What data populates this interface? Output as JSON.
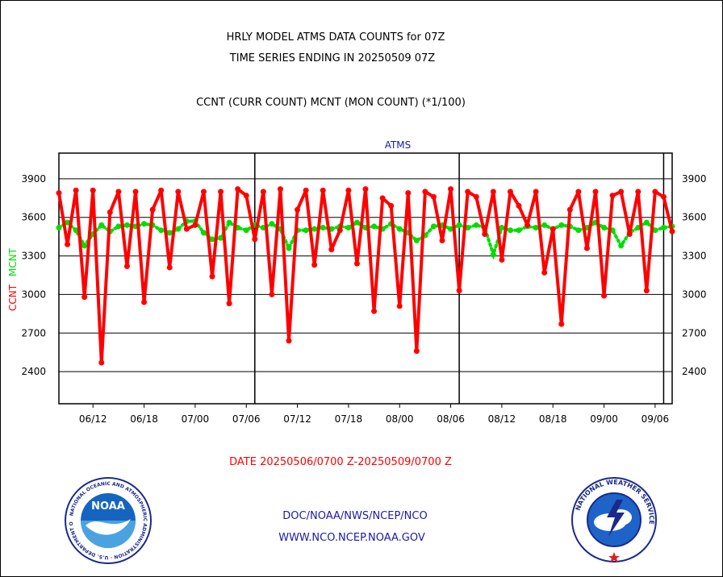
{
  "header": {
    "line1": "HRLY MODEL ATMS DATA COUNTS for 07Z",
    "line2": "TIME SERIES ENDING IN 20250509 07Z",
    "line3": "CCNT (CURR COUNT) MCNT (MON COUNT) (*1/100)"
  },
  "footer": {
    "date_range": "DATE 20250506/0700 Z-20250509/0700 Z",
    "link1": "DOC/NOAA/NWS/NCEP/NCO",
    "link2": "WWW.NCO.NCEP.NOAA.GOV"
  },
  "logos": {
    "noaa_text": "NOAA",
    "noaa_ring_text": "NATIONAL OCEANIC AND ATMOSPHERIC ADMINISTRATION · U.S. DEPARTMENT OF COMMERCE",
    "nws_ring_text": "NATIONAL WEATHER SERVICE"
  },
  "colors": {
    "ccnt": "#ff0000",
    "mcnt": "#00dd00",
    "title": "#1a1aa8",
    "grid": "#000000"
  },
  "chart_data": {
    "type": "line",
    "title": "ATMS",
    "ylabel_left_1": "CCNT",
    "ylabel_left_2": "MCNT",
    "ylim": [
      2150,
      4100
    ],
    "yticks": [
      2400,
      2700,
      3000,
      3300,
      3600,
      3900
    ],
    "xticks": [
      "06/12",
      "06/18",
      "07/00",
      "07/06",
      "07/12",
      "07/18",
      "08/00",
      "08/06",
      "08/12",
      "08/18",
      "09/00",
      "09/06"
    ],
    "x_start_hour": 1,
    "x_end_hour": 73,
    "day_dividers_hour": [
      24,
      48,
      72
    ],
    "grid": true,
    "series": [
      {
        "name": "CCNT",
        "style": "solid-line-dots",
        "x": [
          1,
          2,
          3,
          4,
          5,
          6,
          7,
          8,
          9,
          10,
          11,
          12,
          13,
          14,
          15,
          16,
          17,
          18,
          19,
          20,
          21,
          22,
          23,
          24,
          25,
          26,
          27,
          28,
          29,
          30,
          31,
          32,
          33,
          34,
          35,
          36,
          37,
          38,
          39,
          40,
          41,
          42,
          43,
          44,
          45,
          46,
          47,
          48,
          49,
          50,
          51,
          52,
          53,
          54,
          55,
          56,
          57,
          58,
          59,
          60,
          61,
          62,
          63,
          64,
          65,
          66,
          67,
          68,
          69,
          70,
          71,
          72,
          73
        ],
        "values": [
          3790,
          3390,
          3810,
          2980,
          3810,
          2470,
          3640,
          3800,
          3220,
          3800,
          2940,
          3660,
          3810,
          3210,
          3800,
          3510,
          3540,
          3800,
          3140,
          3800,
          2930,
          3820,
          3770,
          3430,
          3800,
          3000,
          3820,
          2640,
          3660,
          3810,
          3230,
          3810,
          3350,
          3500,
          3810,
          3240,
          3820,
          2870,
          3750,
          3690,
          2910,
          3790,
          2560,
          3800,
          3760,
          3420,
          3820,
          3030,
          3800,
          3760,
          3470,
          3800,
          3270,
          3800,
          3690,
          3540,
          3800,
          3170,
          3510,
          2770,
          3660,
          3800,
          3360,
          3800,
          2990,
          3770,
          3800,
          3470,
          3800,
          3030,
          3800,
          3760,
          3490
        ]
      },
      {
        "name": "MCNT",
        "style": "dotted",
        "x": [
          1,
          2,
          3,
          4,
          5,
          6,
          7,
          8,
          9,
          10,
          11,
          12,
          13,
          14,
          15,
          16,
          17,
          18,
          19,
          20,
          21,
          22,
          23,
          24,
          25,
          26,
          27,
          28,
          29,
          30,
          31,
          32,
          33,
          34,
          35,
          36,
          37,
          38,
          39,
          40,
          41,
          42,
          43,
          44,
          45,
          46,
          47,
          48,
          49,
          50,
          51,
          52,
          53,
          54,
          55,
          56,
          57,
          58,
          59,
          60,
          61,
          62,
          63,
          64,
          65,
          66,
          67,
          68,
          69,
          70,
          71,
          72,
          73
        ],
        "values": [
          3520,
          3560,
          3500,
          3380,
          3470,
          3540,
          3490,
          3530,
          3540,
          3530,
          3550,
          3540,
          3500,
          3480,
          3510,
          3570,
          3570,
          3480,
          3430,
          3440,
          3560,
          3520,
          3500,
          3540,
          3520,
          3550,
          3510,
          3360,
          3500,
          3500,
          3510,
          3520,
          3510,
          3530,
          3520,
          3560,
          3520,
          3530,
          3510,
          3550,
          3510,
          3480,
          3420,
          3460,
          3530,
          3540,
          3510,
          3540,
          3520,
          3540,
          3520,
          3310,
          3520,
          3500,
          3500,
          3530,
          3520,
          3540,
          3510,
          3540,
          3530,
          3500,
          3520,
          3560,
          3520,
          3500,
          3380,
          3480,
          3520,
          3560,
          3500,
          3520,
          3530
        ]
      }
    ]
  }
}
